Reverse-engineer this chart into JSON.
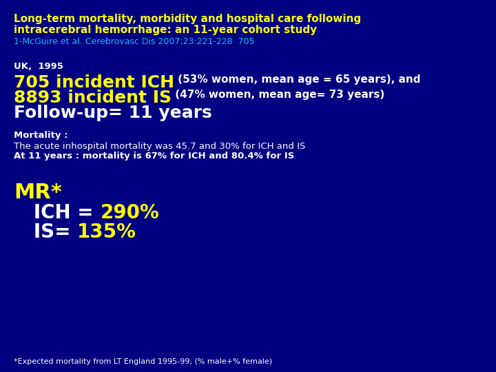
{
  "bg_color": "#000080",
  "title_line1": "Long-term mortality, morbidity and hospital care following",
  "title_line2": "intracerebral hemorrhage: an 11-year cohort study",
  "title_color": "#FFFF00",
  "title_fontsize": 11,
  "ref_line": "1-McGuire et al. Cerebrovasc Dis 2007;23:221-228  705",
  "ref_color": "#00BFFF",
  "ref_fontsize": 9,
  "uk_line": "UK,  1995",
  "uk_color": "#FFFFFF",
  "uk_fontsize": 9.5,
  "ich_big": "705 incident ICH",
  "ich_big_color": "#FFFF00",
  "ich_big_fontsize": 18,
  "ich_small": " (53% women, mean age = 65 years), and",
  "ich_small_color": "#FFFFFF",
  "ich_small_fontsize": 11,
  "is_big": "8893 incident IS",
  "is_big_color": "#FFFF00",
  "is_big_fontsize": 18,
  "is_small": " (47% women, mean age= 73 years)",
  "is_small_color": "#FFFFFF",
  "is_small_fontsize": 11,
  "followup_line": "Follow-up= 11 years",
  "followup_color": "#FFFFFF",
  "followup_fontsize": 18,
  "mortality_bold_line": "Mortality :",
  "mortality_bold_color": "#FFFFFF",
  "mortality_bold_fontsize": 9.5,
  "mortality_line1": "The acute inhospital mortality was 45.7 and 30% for ICH and IS",
  "mortality_line1_color": "#FFFFFF",
  "mortality_line1_fontsize": 9.5,
  "mortality_line2": "At 11 years : mortality is 67% for ICH and 80.4% for IS",
  "mortality_line2_color": "#FFFFFF",
  "mortality_line2_fontsize": 9.5,
  "mr_line": "MR*",
  "mr_color": "#FFFF00",
  "mr_fontsize": 22,
  "ich_eq_label": "   ICH = ",
  "ich_eq_value": "290%",
  "is_eq_label": "   IS= ",
  "is_eq_value": "135%",
  "eq_label_color": "#FFFFFF",
  "eq_value_color": "#FFFF00",
  "eq_fontsize": 20,
  "footnote": "*Expected mortality from LT England 1995-99, (% male+% female)",
  "footnote_color": "#FFFFFF",
  "footnote_fontsize": 8
}
